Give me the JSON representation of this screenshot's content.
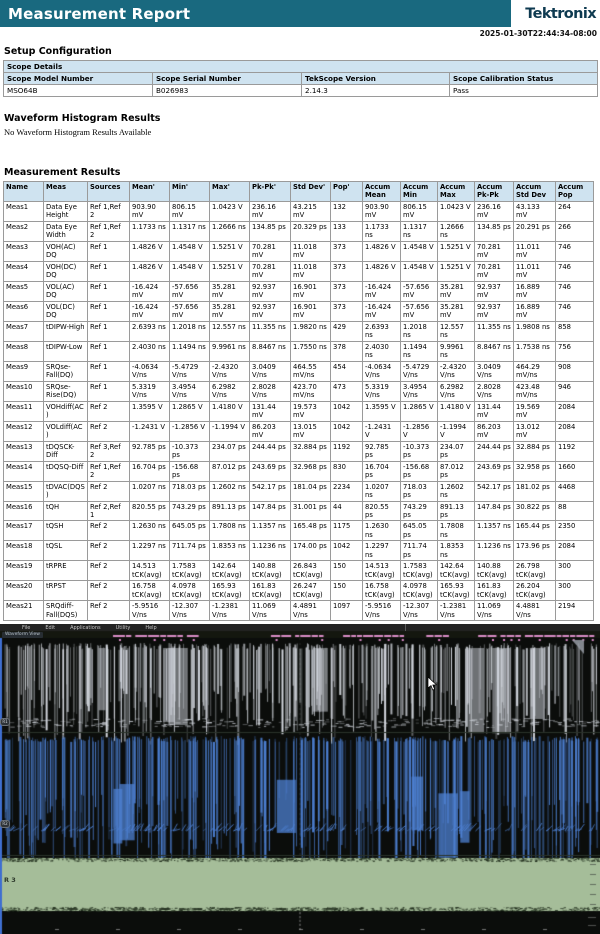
{
  "header": {
    "title": "Measurement Report",
    "logo": "Tektronix",
    "timestamp": "2025-01-30T22:44:34-08:00",
    "bar_color": "#19697f",
    "logo_color": "#0e3a50"
  },
  "setup": {
    "section_title": "Setup Configuration",
    "table_title": "Scope Details",
    "columns": [
      "Scope Model Number",
      "Scope Serial Number",
      "TekScope Version",
      "Scope Calibration Status"
    ],
    "values": [
      "MSO64B",
      "B026983",
      "2.14.3",
      "Pass"
    ]
  },
  "histogram": {
    "section_title": "Waveform Histogram Results",
    "message": "No Waveform Histogram Results Available"
  },
  "measurements": {
    "section_title": "Measurement Results",
    "columns": [
      "Name",
      "Meas",
      "Sources",
      "Mean'",
      "Min'",
      "Max'",
      "Pk-Pk'",
      "Std Dev'",
      "Pop'",
      "Accum Mean",
      "Accum Min",
      "Accum Max",
      "Accum Pk-Pk",
      "Accum Std Dev",
      "Accum Pop"
    ],
    "rows": [
      [
        "Meas1",
        "Data Eye Height",
        "Ref 1,Ref 2",
        "903.90 mV",
        "806.15 mV",
        "1.0423 V",
        "236.16 mV",
        "43.215 mV",
        "132",
        "903.90 mV",
        "806.15 mV",
        "1.0423 V",
        "236.16 mV",
        "43.133 mV",
        "264"
      ],
      [
        "Meas2",
        "Data Eye Width",
        "Ref 1,Ref 2",
        "1.1733 ns",
        "1.1317 ns",
        "1.2666 ns",
        "134.85 ps",
        "20.329 ps",
        "133",
        "1.1733 ns",
        "1.1317 ns",
        "1.2666 ns",
        "134.85 ps",
        "20.291 ps",
        "266"
      ],
      [
        "Meas3",
        "VOH(AC) DQ",
        "Ref 1",
        "1.4826 V",
        "1.4548 V",
        "1.5251 V",
        "70.281 mV",
        "11.018 mV",
        "373",
        "1.4826 V",
        "1.4548 V",
        "1.5251 V",
        "70.281 mV",
        "11.011 mV",
        "746"
      ],
      [
        "Meas4",
        "VOH(DC) DQ",
        "Ref 1",
        "1.4826 V",
        "1.4548 V",
        "1.5251 V",
        "70.281 mV",
        "11.018 mV",
        "373",
        "1.4826 V",
        "1.4548 V",
        "1.5251 V",
        "70.281 mV",
        "11.011 mV",
        "746"
      ],
      [
        "Meas5",
        "VOL(AC) DQ",
        "Ref 1",
        "-16.424 mV",
        "-57.656 mV",
        "35.281 mV",
        "92.937 mV",
        "16.901 mV",
        "373",
        "-16.424 mV",
        "-57.656 mV",
        "35.281 mV",
        "92.937 mV",
        "16.889 mV",
        "746"
      ],
      [
        "Meas6",
        "VOL(DC) DQ",
        "Ref 1",
        "-16.424 mV",
        "-57.656 mV",
        "35.281 mV",
        "92.937 mV",
        "16.901 mV",
        "373",
        "-16.424 mV",
        "-57.656 mV",
        "35.281 mV",
        "92.937 mV",
        "16.889 mV",
        "746"
      ],
      [
        "Meas7",
        "tDIPW-High",
        "Ref 1",
        "2.6393 ns",
        "1.2018 ns",
        "12.557 ns",
        "11.355 ns",
        "1.9820 ns",
        "429",
        "2.6393 ns",
        "1.2018 ns",
        "12.557 ns",
        "11.355 ns",
        "1.9808 ns",
        "858"
      ],
      [
        "Meas8",
        "tDIPW-Low",
        "Ref 1",
        "2.4030 ns",
        "1.1494 ns",
        "9.9961 ns",
        "8.8467 ns",
        "1.7550 ns",
        "378",
        "2.4030 ns",
        "1.1494 ns",
        "9.9961 ns",
        "8.8467 ns",
        "1.7538 ns",
        "756"
      ],
      [
        "Meas9",
        "SRQse-Fall(DQ)",
        "Ref 1",
        "-4.0634 V/ns",
        "-5.4729 V/ns",
        "-2.4320 V/ns",
        "3.0409 V/ns",
        "464.55 mV/ns",
        "454",
        "-4.0634 V/ns",
        "-5.4729 V/ns",
        "-2.4320 V/ns",
        "3.0409 V/ns",
        "464.29 mV/ns",
        "908"
      ],
      [
        "Meas10",
        "SRQse-Rise(DQ)",
        "Ref 1",
        "5.3319 V/ns",
        "3.4954 V/ns",
        "6.2982 V/ns",
        "2.8028 V/ns",
        "423.70 mV/ns",
        "473",
        "5.3319 V/ns",
        "3.4954 V/ns",
        "6.2982 V/ns",
        "2.8028 V/ns",
        "423.48 mV/ns",
        "946"
      ],
      [
        "Meas11",
        "VOHdiff(AC)",
        "Ref 2",
        "1.3595 V",
        "1.2865 V",
        "1.4180 V",
        "131.44 mV",
        "19.573 mV",
        "1042",
        "1.3595 V",
        "1.2865 V",
        "1.4180 V",
        "131.44 mV",
        "19.569 mV",
        "2084"
      ],
      [
        "Meas12",
        "VOLdiff(AC)",
        "Ref 2",
        "-1.2431 V",
        "-1.2856 V",
        "-1.1994 V",
        "86.203 mV",
        "13.015 mV",
        "1042",
        "-1.2431 V",
        "-1.2856 V",
        "-1.1994 V",
        "86.203 mV",
        "13.012 mV",
        "2084"
      ],
      [
        "Meas13",
        "tDQSCK-Diff",
        "Ref 3,Ref 2",
        "92.785 ps",
        "-10.373 ps",
        "234.07 ps",
        "244.44 ps",
        "32.884 ps",
        "1192",
        "92.785 ps",
        "-10.373 ps",
        "234.07 ps",
        "244.44 ps",
        "32.884 ps",
        "1192"
      ],
      [
        "Meas14",
        "tDQSQ-Diff",
        "Ref 1,Ref 2",
        "16.704 ps",
        "-156.68 ps",
        "87.012 ps",
        "243.69 ps",
        "32.968 ps",
        "830",
        "16.704 ps",
        "-156.68 ps",
        "87.012 ps",
        "243.69 ps",
        "32.958 ps",
        "1660"
      ],
      [
        "Meas15",
        "tDVAC(DQS)",
        "Ref 2",
        "1.0207 ns",
        "718.03 ps",
        "1.2602 ns",
        "542.17 ps",
        "181.04 ps",
        "2234",
        "1.0207 ns",
        "718.03 ps",
        "1.2602 ns",
        "542.17 ps",
        "181.02 ps",
        "4468"
      ],
      [
        "Meas16",
        "tQH",
        "Ref 2,Ref 1",
        "820.55 ps",
        "743.29 ps",
        "891.13 ps",
        "147.84 ps",
        "31.001 ps",
        "44",
        "820.55 ps",
        "743.29 ps",
        "891.13 ps",
        "147.84 ps",
        "30.822 ps",
        "88"
      ],
      [
        "Meas17",
        "tQSH",
        "Ref 2",
        "1.2630 ns",
        "645.05 ps",
        "1.7808 ns",
        "1.1357 ns",
        "165.48 ps",
        "1175",
        "1.2630 ns",
        "645.05 ps",
        "1.7808 ns",
        "1.1357 ns",
        "165.44 ps",
        "2350"
      ],
      [
        "Meas18",
        "tQSL",
        "Ref 2",
        "1.2297 ns",
        "711.74 ps",
        "1.8353 ns",
        "1.1236 ns",
        "174.00 ps",
        "1042",
        "1.2297 ns",
        "711.74 ps",
        "1.8353 ns",
        "1.1236 ns",
        "173.96 ps",
        "2084"
      ],
      [
        "Meas19",
        "tRPRE",
        "Ref 2",
        "14.513 tCK(avg)",
        "1.7583 tCK(avg)",
        "142.64 tCK(avg)",
        "140.88 tCK(avg)",
        "26.843 tCK(avg)",
        "150",
        "14.513 tCK(avg)",
        "1.7583 tCK(avg)",
        "142.64 tCK(avg)",
        "140.88 tCK(avg)",
        "26.798 tCK(avg)",
        "300"
      ],
      [
        "Meas20",
        "tRPST",
        "Ref 2",
        "16.758 tCK(avg)",
        "4.0978 tCK(avg)",
        "165.93 tCK(avg)",
        "161.83 tCK(avg)",
        "26.247 tCK(avg)",
        "150",
        "16.758 tCK(avg)",
        "4.0978 tCK(avg)",
        "165.93 tCK(avg)",
        "161.83 tCK(avg)",
        "26.204 tCK(avg)",
        "300"
      ],
      [
        "Meas21",
        "SRQdiff-Fall(DQS)",
        "Ref 2",
        "-5.9516 V/ns",
        "-12.307 V/ns",
        "-1.2381 V/ns",
        "11.069 V/ns",
        "4.4891 V/ns",
        "1097",
        "-5.9516 V/ns",
        "-12.307 V/ns",
        "-1.2381 V/ns",
        "11.069 V/ns",
        "4.4881 V/ns",
        "2194"
      ]
    ]
  },
  "scope_screenshot": {
    "menu_items": [
      "File",
      "Edit",
      "Applications",
      "Utility",
      "Help"
    ],
    "tab_label": "Waveform View",
    "trace_labels": [
      "R1",
      "R2",
      "R 3"
    ],
    "colors": {
      "background": "#0b0d0b",
      "menubar": "#232323",
      "trace_white": "#d2d6dd",
      "trace_blue": "#4d80d2",
      "green_band": "#a5bd99",
      "marker_pink": "#d98cc6",
      "left_strip_blue": "#3f6fd0",
      "grid": "#2a332a"
    }
  }
}
